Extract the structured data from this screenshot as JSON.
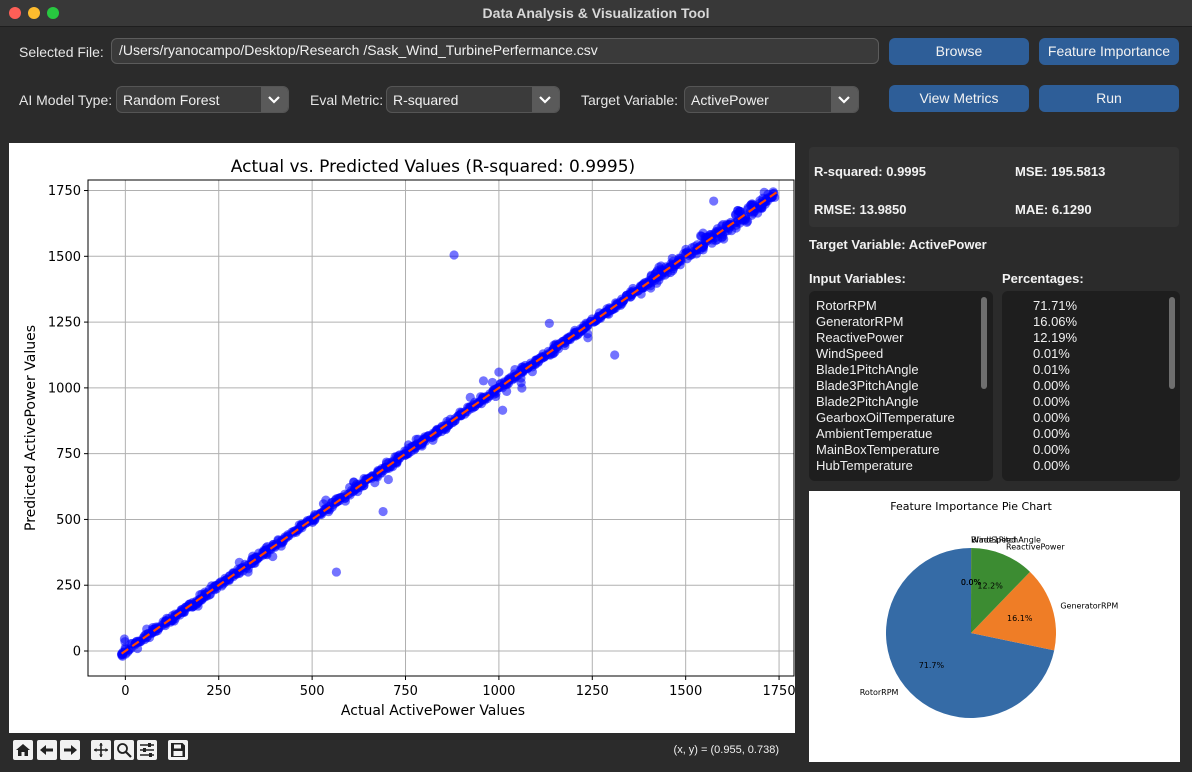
{
  "window": {
    "title": "Data Analysis & Visualization Tool"
  },
  "file": {
    "label": "Selected File:",
    "path": "/Users/ryanocampo/Desktop/Research /Sask_Wind_TurbinePerfermance.csv"
  },
  "buttons": {
    "browse": "Browse",
    "feature_importance": "Feature Importance",
    "view_metrics": "View Metrics",
    "run": "Run"
  },
  "controls": {
    "model_label": "AI Model Type:",
    "model_value": "Random Forest",
    "metric_label": "Eval Metric:",
    "metric_value": "R-squared",
    "target_label": "Target Variable:",
    "target_value": "ActivePower"
  },
  "toolbar": {
    "coords": "(x, y) = (0.955, 0.738)"
  },
  "metrics": {
    "r2": "R-squared: 0.9995",
    "mse": "MSE: 195.5813",
    "rmse": "RMSE: 13.9850",
    "mae": "MAE: 6.1290"
  },
  "target_text": "Target Variable: ActivePower",
  "input_header": "Input Variables:",
  "pct_header": "Percentages:",
  "features": [
    {
      "name": "RotorRPM",
      "pct": "71.71%"
    },
    {
      "name": "GeneratorRPM",
      "pct": "16.06%"
    },
    {
      "name": "ReactivePower",
      "pct": "12.19%"
    },
    {
      "name": "WindSpeed",
      "pct": "0.01%"
    },
    {
      "name": "Blade1PitchAngle",
      "pct": "0.01%"
    },
    {
      "name": "Blade3PitchAngle",
      "pct": "0.00%"
    },
    {
      "name": "Blade2PitchAngle",
      "pct": "0.00%"
    },
    {
      "name": "GearboxOilTemperature",
      "pct": "0.00%"
    },
    {
      "name": "AmbientTemperatue",
      "pct": "0.00%"
    },
    {
      "name": "MainBoxTemperature",
      "pct": "0.00%"
    },
    {
      "name": "HubTemperature",
      "pct": "0.00%"
    }
  ],
  "chart_data": [
    {
      "type": "scatter",
      "title": "Actual vs. Predicted Values (R-squared: 0.9995)",
      "xlabel": "Actual ActivePower Values",
      "ylabel": "Predicted ActivePower Values",
      "xlim": [
        -100,
        1790
      ],
      "ylim": [
        -95,
        1790
      ],
      "xticks": [
        0,
        250,
        500,
        750,
        1000,
        1250,
        1500,
        1750
      ],
      "yticks": [
        0,
        250,
        500,
        750,
        1000,
        1250,
        1500,
        1750
      ],
      "grid": true,
      "point_color": "#0000ff",
      "line_color": "#ff4500",
      "reference_line": {
        "x": [
          -10,
          1745
        ],
        "y": [
          -10,
          1745
        ],
        "style": "dashed"
      },
      "outliers": [
        {
          "x": 880,
          "y": 1505
        },
        {
          "x": 565,
          "y": 300
        },
        {
          "x": 690,
          "y": 530
        },
        {
          "x": 1575,
          "y": 1710
        },
        {
          "x": 1310,
          "y": 1125
        },
        {
          "x": 1000,
          "y": 1060
        },
        {
          "x": 1010,
          "y": 915
        },
        {
          "x": 1135,
          "y": 1245
        }
      ],
      "main_band": {
        "x_start": -10,
        "x_end": 1745
      }
    },
    {
      "type": "pie",
      "title": "Feature Importance Pie Chart",
      "slices": [
        {
          "label": "RotorRPM",
          "value": 71.71,
          "pct_label": "71.7%",
          "color": "#356ba6"
        },
        {
          "label": "GeneratorRPM",
          "value": 16.06,
          "pct_label": "16.1%",
          "color": "#ef7d26"
        },
        {
          "label": "ReactivePower",
          "value": 12.19,
          "pct_label": "12.2%",
          "color": "#3c8c32"
        },
        {
          "label": "WindSpeed",
          "value": 0.01,
          "pct_label": "0.0%",
          "color": "#c33b33"
        },
        {
          "label": "Blade1PitchAngle",
          "value": 0.01,
          "pct_label": "0.0%",
          "color": "#8a5fb0"
        }
      ]
    }
  ]
}
